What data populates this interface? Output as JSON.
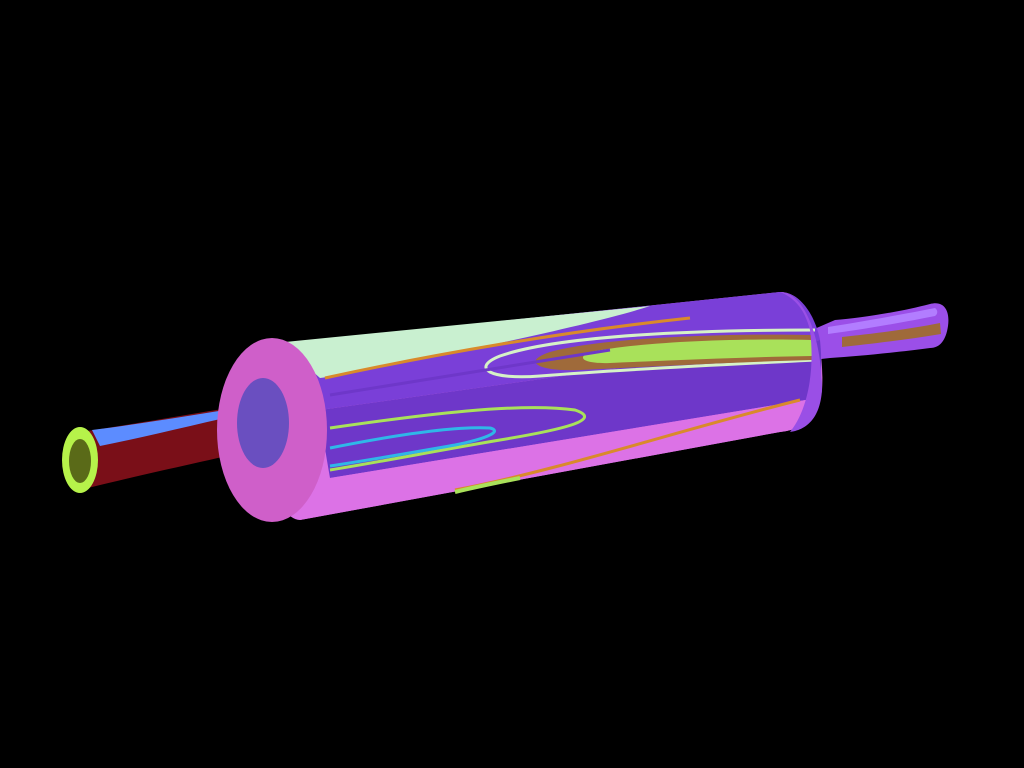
{
  "scene": {
    "subject": "rolling-pin",
    "colors": {
      "background": "#000000",
      "barrel_top": "#7a3fd8",
      "barrel_highlight": "#c9f0d0",
      "barrel_bottom": "#dc72e6",
      "barrel_mid_violet": "#6e37c9",
      "end_cap_face": "#cf5fc9",
      "end_cap_inner": "#6a4fc0",
      "right_band": "#9a4fe6",
      "left_handle_dark": "#7a0f18",
      "left_handle_blue": "#5c8cff",
      "left_handle_tip_ring": "#b6f24a",
      "left_handle_tip_core": "#5a6a18",
      "right_handle": "#9b4fe8",
      "right_handle_light": "#b27dff",
      "grain_orange": "#d98a2b",
      "grain_green": "#a9e15a",
      "grain_cyan": "#2fb7e8",
      "grain_light": "#d6f2c7",
      "grain_brown": "#9f6a3a"
    }
  }
}
